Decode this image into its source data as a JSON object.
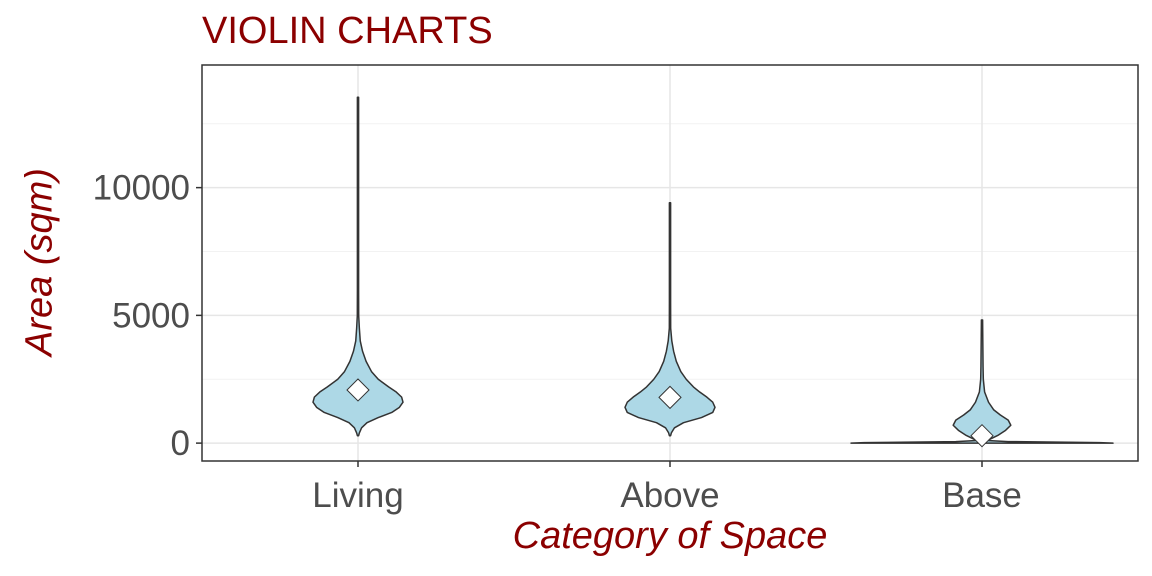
{
  "chart_data": {
    "type": "violin",
    "title": "VIOLIN CHARTS",
    "xlabel": "Category of Space",
    "ylabel": "Area (sqm)",
    "categories": [
      "Living",
      "Above",
      "Base"
    ],
    "ylim": [
      -700,
      14800
    ],
    "yticks": [
      0,
      5000,
      10000
    ],
    "grid": true,
    "fill_color": "#add8e6",
    "outline_color": "#333333",
    "title_color": "#8b0000",
    "mean_marker": "white-diamond",
    "series": [
      {
        "name": "Living",
        "min": 290,
        "max": 13540,
        "mean": 2080,
        "density": [
          [
            290,
            0.01
          ],
          [
            400,
            0.03
          ],
          [
            600,
            0.08
          ],
          [
            800,
            0.2
          ],
          [
            1000,
            0.45
          ],
          [
            1200,
            0.75
          ],
          [
            1400,
            0.92
          ],
          [
            1600,
            1.0
          ],
          [
            1800,
            0.97
          ],
          [
            2000,
            0.85
          ],
          [
            2200,
            0.68
          ],
          [
            2500,
            0.45
          ],
          [
            2800,
            0.3
          ],
          [
            3200,
            0.18
          ],
          [
            3600,
            0.1
          ],
          [
            4000,
            0.05
          ],
          [
            4500,
            0.03
          ],
          [
            5000,
            0.015
          ],
          [
            6000,
            0.008
          ],
          [
            8000,
            0.005
          ],
          [
            13540,
            0.004
          ]
        ]
      },
      {
        "name": "Above",
        "min": 290,
        "max": 9410,
        "mean": 1790,
        "density": [
          [
            290,
            0.01
          ],
          [
            400,
            0.03
          ],
          [
            600,
            0.1
          ],
          [
            800,
            0.3
          ],
          [
            1000,
            0.7
          ],
          [
            1200,
            0.95
          ],
          [
            1400,
            1.0
          ],
          [
            1600,
            0.95
          ],
          [
            1800,
            0.82
          ],
          [
            2000,
            0.66
          ],
          [
            2200,
            0.52
          ],
          [
            2500,
            0.36
          ],
          [
            2800,
            0.24
          ],
          [
            3200,
            0.14
          ],
          [
            3600,
            0.08
          ],
          [
            4000,
            0.04
          ],
          [
            4500,
            0.015
          ],
          [
            5500,
            0.008
          ],
          [
            9410,
            0.004
          ]
        ]
      },
      {
        "name": "Base",
        "min": 0,
        "max": 4820,
        "mean": 290,
        "density": [
          [
            0,
            1.0
          ],
          [
            20,
            0.9
          ],
          [
            60,
            0.2
          ],
          [
            100,
            0.04
          ],
          [
            300,
            0.12
          ],
          [
            500,
            0.18
          ],
          [
            700,
            0.22
          ],
          [
            900,
            0.2
          ],
          [
            1100,
            0.14
          ],
          [
            1300,
            0.09
          ],
          [
            1600,
            0.05
          ],
          [
            2000,
            0.02
          ],
          [
            2500,
            0.01
          ],
          [
            3000,
            0.008
          ],
          [
            4820,
            0.004
          ]
        ]
      }
    ]
  }
}
